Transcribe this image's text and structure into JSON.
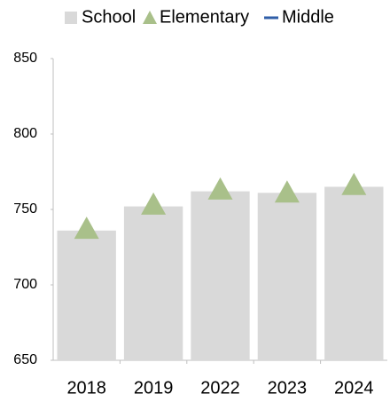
{
  "chart_data": {
    "type": "bar",
    "categories": [
      "2018",
      "2019",
      "2022",
      "2023",
      "2024"
    ],
    "series": [
      {
        "name": "School",
        "type": "bar",
        "color": "#d9d9d9",
        "values": [
          736,
          752,
          762,
          761,
          765
        ]
      },
      {
        "name": "Elementary",
        "type": "triangle",
        "color": "#a9c08a",
        "values": [
          737,
          753,
          763,
          761,
          766
        ]
      },
      {
        "name": "Middle",
        "type": "line",
        "color": "#2f5ea8",
        "values": [
          null,
          null,
          null,
          null,
          null
        ]
      }
    ],
    "ylim": [
      650,
      850
    ],
    "yticks": [
      650,
      700,
      750,
      800,
      850
    ]
  }
}
